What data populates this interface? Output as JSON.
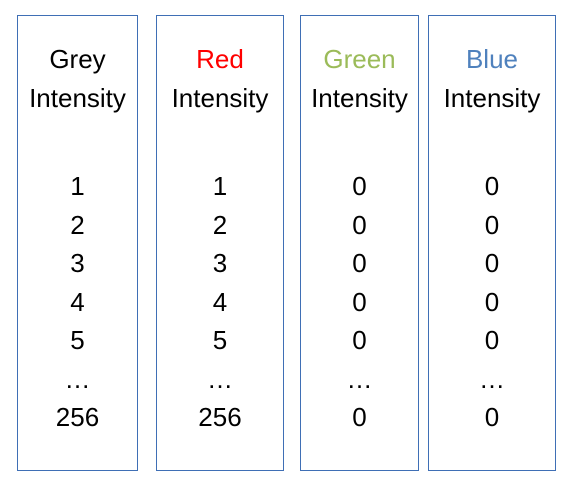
{
  "columns": [
    {
      "color_word": "Grey",
      "color_hex": "#000000",
      "label": "Intensity",
      "values": [
        "1",
        "2",
        "3",
        "4",
        "5",
        "…",
        "256"
      ]
    },
    {
      "color_word": "Red",
      "color_hex": "#ff0000",
      "label": "Intensity",
      "values": [
        "1",
        "2",
        "3",
        "4",
        "5",
        "…",
        "256"
      ]
    },
    {
      "color_word": "Green",
      "color_hex": "#9bbb59",
      "label": "Intensity",
      "values": [
        "0",
        "0",
        "0",
        "0",
        "0",
        "…",
        "0"
      ]
    },
    {
      "color_word": "Blue",
      "color_hex": "#4f81bd",
      "label": "Intensity",
      "values": [
        "0",
        "0",
        "0",
        "0",
        "0",
        "…",
        "0"
      ]
    }
  ],
  "border_color": "#3f6fb5"
}
